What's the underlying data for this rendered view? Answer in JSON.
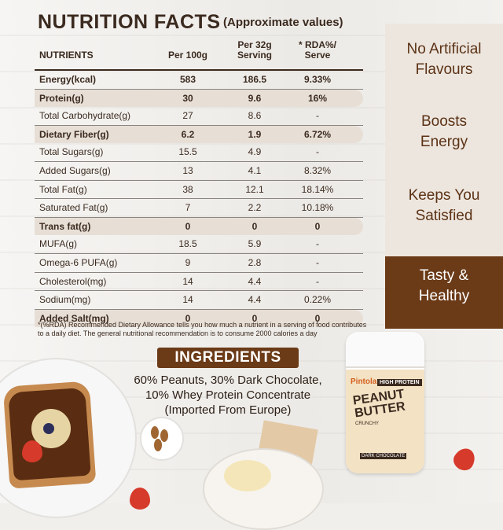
{
  "title": "NUTRITION FACTS",
  "approx": "(Approximate values)",
  "headers": {
    "nutrients": "NUTRIENTS",
    "per100": "Per 100g",
    "per32a": "Per 32g",
    "per32b": "Serving",
    "rdaa": "* RDA%/",
    "rdab": "Serve"
  },
  "rows": [
    {
      "name": "Energy(kcal)",
      "per100": "583",
      "serving": "186.5",
      "rda": "9.33%"
    },
    {
      "name": "Protein(g)",
      "per100": "30",
      "serving": "9.6",
      "rda": "16%"
    },
    {
      "name": "Total Carbohydrate(g)",
      "per100": "27",
      "serving": "8.6",
      "rda": "-"
    },
    {
      "name": "Dietary Fiber(g)",
      "per100": "6.2",
      "serving": "1.9",
      "rda": "6.72%"
    },
    {
      "name": "Total Sugars(g)",
      "per100": "15.5",
      "serving": "4.9",
      "rda": "-"
    },
    {
      "name": "Added Sugars(g)",
      "per100": "13",
      "serving": "4.1",
      "rda": "8.32%"
    },
    {
      "name": "Total Fat(g)",
      "per100": "38",
      "serving": "12.1",
      "rda": "18.14%"
    },
    {
      "name": "Saturated Fat(g)",
      "per100": "7",
      "serving": "2.2",
      "rda": "10.18%"
    },
    {
      "name": "Trans fat(g)",
      "per100": "0",
      "serving": "0",
      "rda": "0"
    },
    {
      "name": "MUFA(g)",
      "per100": "18.5",
      "serving": "5.9",
      "rda": "-"
    },
    {
      "name": "Omega-6 PUFA(g)",
      "per100": "9",
      "serving": "2.8",
      "rda": "-"
    },
    {
      "name": "Cholesterol(mg)",
      "per100": "14",
      "serving": "4.4",
      "rda": "-"
    },
    {
      "name": "Sodium(mg)",
      "per100": "14",
      "serving": "4.4",
      "rda": "0.22%"
    },
    {
      "name": "Added Salt(mg)",
      "per100": "0",
      "serving": "0",
      "rda": "0"
    }
  ],
  "footnote": "*(%RDA) Recommended Dietary Allowance tells you how much a nutrient in a serving of food contributes to a daily diet. The general nutritional recommendation is to consume 2000 calories a day",
  "benefits": {
    "b1a": "No Artificial",
    "b1b": "Flavours",
    "b2a": "Boosts",
    "b2b": "Energy",
    "b3a": "Keeps You",
    "b3b": "Satisfied",
    "b4a": "Tasty &",
    "b4b": "Healthy"
  },
  "ingredients": {
    "heading": "INGREDIENTS",
    "line1": "60% Peanuts, 30% Dark Chocolate,",
    "line2": "10% Whey Protein Concentrate",
    "line3": "(Imported From Europe)"
  },
  "jar": {
    "brand": "Pintola",
    "hp": "HIGH PROTEIN",
    "pb1": "PEANUT",
    "pb2": "BUTTER",
    "sub": "CRUNCHY",
    "dc": "DARK CHOCOLATE"
  },
  "colors": {
    "brown": "#6b3a17",
    "highlight": "#e7dfd6"
  }
}
